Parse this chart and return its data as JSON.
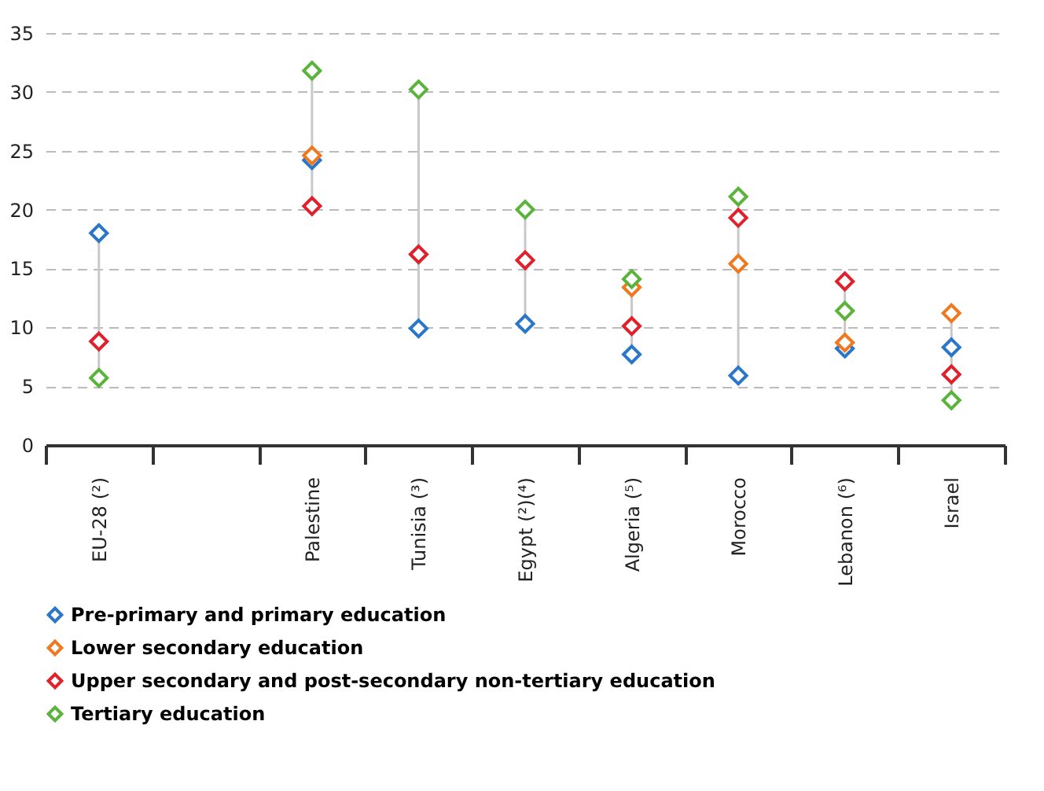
{
  "chart_data": {
    "type": "scatter",
    "categories": [
      "EU-28 (²)",
      null,
      "Palestine",
      "Tunisia (³)",
      "Egypt (²)(⁴)",
      "Algeria (⁵)",
      "Morocco",
      "Lebanon (⁶)",
      "Israel"
    ],
    "series": [
      {
        "name": "Pre-primary and primary education",
        "color": "#2a77c9",
        "values": [
          18.0,
          null,
          24.2,
          9.9,
          10.3,
          7.7,
          5.9,
          8.2,
          8.3
        ]
      },
      {
        "name": "Lower secondary education",
        "color": "#f0781e",
        "values": [
          null,
          null,
          24.6,
          null,
          null,
          13.4,
          15.4,
          8.7,
          11.2
        ]
      },
      {
        "name": "Upper secondary and post-secondary non-tertiary education",
        "color": "#e0202a",
        "values": [
          8.8,
          null,
          20.3,
          16.2,
          15.7,
          10.1,
          19.3,
          13.9,
          6.0
        ]
      },
      {
        "name": "Tertiary education",
        "color": "#5ab43c",
        "values": [
          5.7,
          null,
          31.8,
          30.2,
          20.0,
          14.1,
          21.1,
          11.4,
          3.8
        ]
      }
    ],
    "ylim": [
      0,
      35
    ],
    "yticks": [
      0,
      5,
      10,
      15,
      20,
      25,
      30,
      35
    ],
    "grid": "y",
    "legend": "bottom",
    "marker": "diamond"
  }
}
